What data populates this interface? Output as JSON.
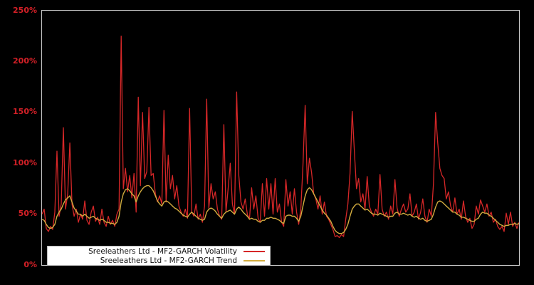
{
  "figure": {
    "background": "#000000"
  },
  "axis": {
    "spine_color": "#c8c8c8",
    "tick_label_color": "#d42027"
  },
  "legend": {
    "position": "bottom-left",
    "background": "#ffffff",
    "marker_side": "right"
  },
  "chart_data": {
    "type": "line",
    "title": "",
    "xlabel": "",
    "ylabel": "",
    "ylim": [
      0,
      250
    ],
    "values_unit": "percent",
    "x_tick_labels_visible": false,
    "grid": false,
    "yticks": [
      {
        "label": "0%",
        "value": 0
      },
      {
        "label": "50%",
        "value": 50
      },
      {
        "label": "100%",
        "value": 100
      },
      {
        "label": "150%",
        "value": 150
      },
      {
        "label": "200%",
        "value": 200
      },
      {
        "label": "250%",
        "value": 250
      }
    ],
    "series": [
      {
        "name": "Sreeleathers Ltd - MF2-GARCH Volatility",
        "color": "#d62728",
        "stroke_width": 1.3,
        "values": [
          50,
          55,
          36,
          33,
          38,
          35,
          52,
          112,
          48,
          60,
          135,
          55,
          70,
          120,
          60,
          48,
          55,
          42,
          50,
          45,
          63,
          44,
          40,
          52,
          58,
          43,
          47,
          40,
          55,
          42,
          38,
          48,
          40,
          44,
          38,
          50,
          55,
          225,
          75,
          95,
          72,
          88,
          66,
          90,
          52,
          165,
          78,
          150,
          85,
          92,
          155,
          88,
          90,
          70,
          62,
          68,
          60,
          152,
          62,
          108,
          75,
          88,
          65,
          78,
          58,
          52,
          48,
          55,
          46,
          154,
          52,
          48,
          60,
          45,
          50,
          42,
          58,
          163,
          56,
          80,
          65,
          72,
          55,
          48,
          45,
          138,
          52,
          75,
          100,
          60,
          50,
          170,
          88,
          62,
          55,
          65,
          50,
          45,
          76,
          55,
          68,
          46,
          42,
          80,
          48,
          85,
          55,
          80,
          50,
          85,
          52,
          60,
          42,
          38,
          84,
          58,
          72,
          50,
          75,
          52,
          40,
          55,
          98,
          157,
          80,
          105,
          91,
          70,
          65,
          55,
          68,
          50,
          62,
          48,
          45,
          40,
          35,
          28,
          29,
          27,
          30,
          28,
          45,
          60,
          90,
          151,
          112,
          75,
          85,
          62,
          70,
          55,
          87,
          58,
          52,
          48,
          55,
          50,
          89,
          55,
          48,
          52,
          45,
          58,
          50,
          84,
          56,
          48,
          55,
          60,
          52,
          55,
          70,
          48,
          52,
          60,
          45,
          52,
          65,
          48,
          42,
          55,
          48,
          80,
          150,
          120,
          95,
          88,
          85,
          65,
          72,
          58,
          52,
          66,
          50,
          55,
          45,
          63,
          48,
          42,
          46,
          36,
          40,
          58,
          50,
          64,
          58,
          52,
          60,
          48,
          52,
          42,
          45,
          38,
          35,
          38,
          33,
          51,
          40,
          52,
          38,
          42,
          36,
          42
        ]
      },
      {
        "name": "Sreeleathers Ltd - MF2-GARCH Trend",
        "color": "#d2ac3f",
        "stroke_width": 1.4,
        "values": [
          45,
          44,
          40,
          37,
          36,
          37,
          40,
          48,
          52,
          55,
          60,
          64,
          66,
          68,
          62,
          56,
          53,
          50,
          50,
          48,
          50,
          48,
          46,
          47,
          48,
          46,
          45,
          44,
          45,
          44,
          42,
          42,
          41,
          41,
          40,
          42,
          48,
          62,
          70,
          74,
          75,
          73,
          70,
          68,
          62,
          68,
          72,
          75,
          77,
          78,
          78,
          76,
          73,
          68,
          63,
          60,
          58,
          62,
          63,
          62,
          60,
          58,
          56,
          55,
          53,
          51,
          49,
          48,
          47,
          50,
          52,
          50,
          48,
          46,
          45,
          44,
          45,
          52,
          55,
          56,
          55,
          53,
          50,
          48,
          46,
          50,
          52,
          53,
          54,
          52,
          50,
          55,
          57,
          55,
          52,
          50,
          48,
          45,
          46,
          45,
          45,
          43,
          42,
          44,
          44,
          46,
          46,
          47,
          46,
          46,
          45,
          44,
          42,
          41,
          48,
          49,
          49,
          48,
          48,
          46,
          43,
          48,
          58,
          68,
          74,
          76,
          74,
          70,
          66,
          62,
          58,
          54,
          51,
          49,
          46,
          43,
          38,
          34,
          32,
          31,
          31,
          32,
          35,
          40,
          48,
          55,
          58,
          60,
          60,
          58,
          56,
          54,
          55,
          53,
          51,
          50,
          50,
          49,
          51,
          50,
          49,
          48,
          47,
          48,
          48,
          51,
          52,
          50,
          50,
          51,
          50,
          49,
          50,
          48,
          47,
          48,
          46,
          45,
          46,
          44,
          43,
          44,
          45,
          50,
          57,
          62,
          63,
          62,
          60,
          58,
          56,
          54,
          52,
          52,
          50,
          49,
          47,
          47,
          46,
          45,
          44,
          43,
          43,
          45,
          46,
          50,
          52,
          51,
          51,
          49,
          48,
          46,
          44,
          42,
          40,
          39,
          38,
          39,
          39,
          40,
          40,
          41,
          40,
          41
        ]
      }
    ]
  }
}
